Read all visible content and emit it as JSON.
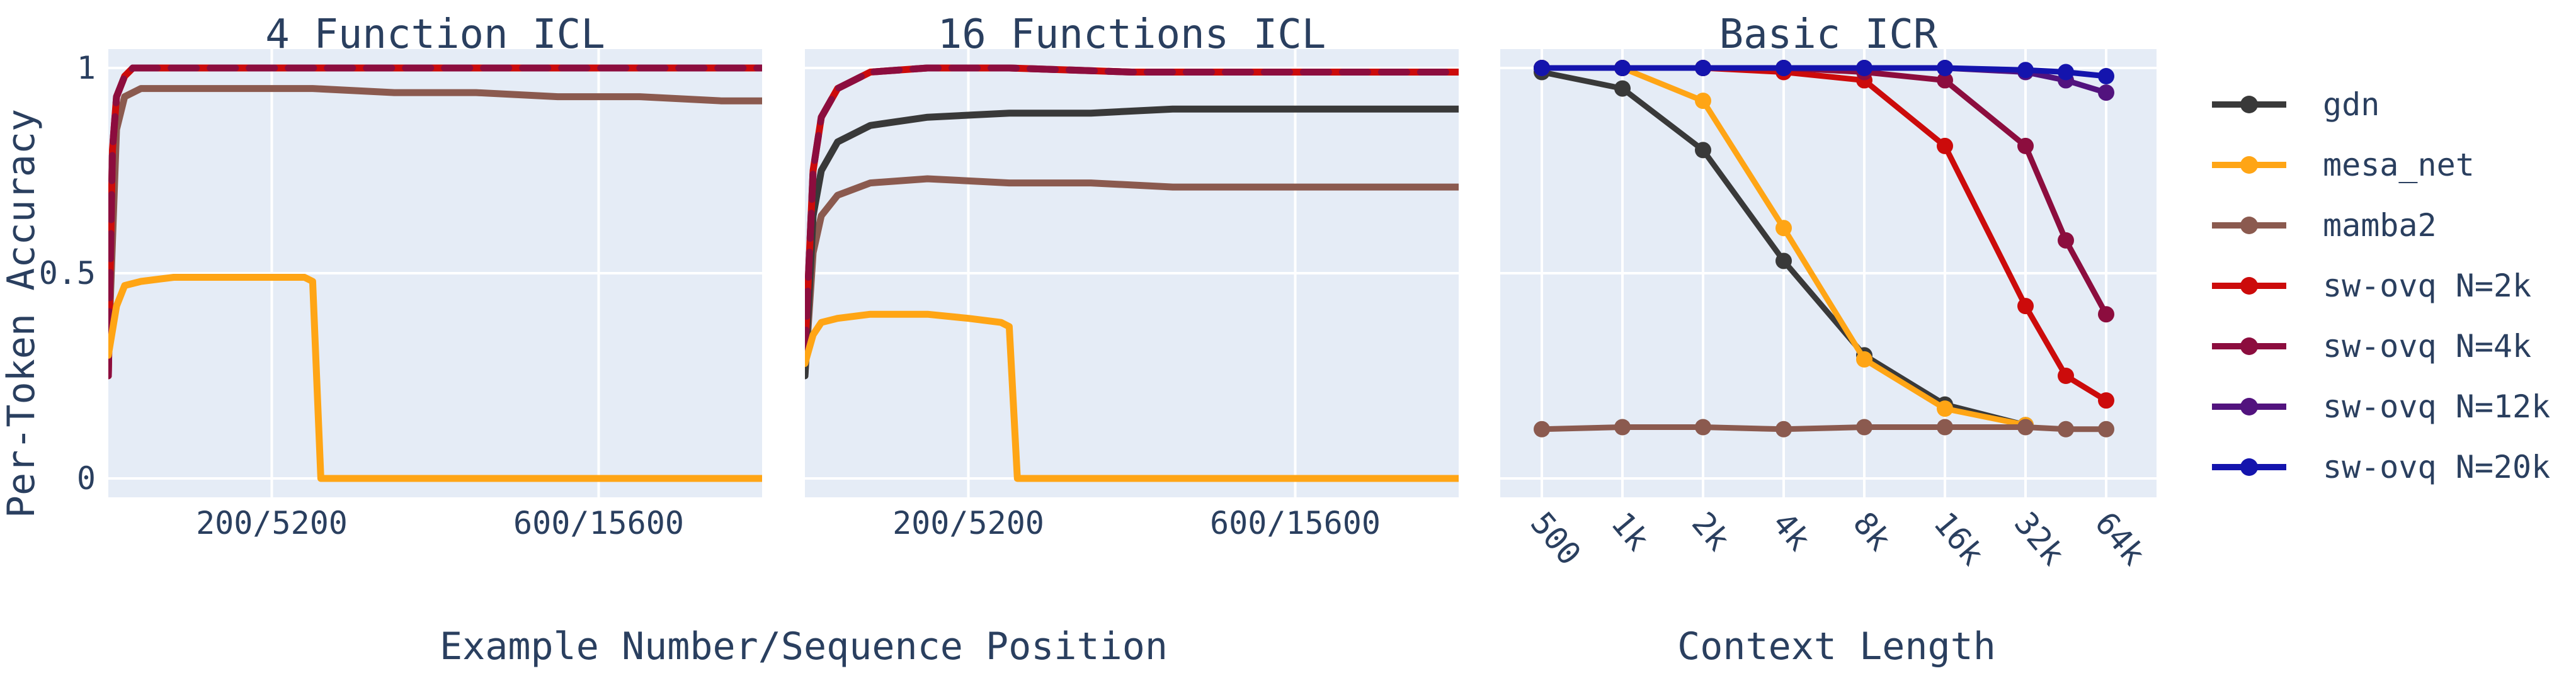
{
  "ylabel": "Per-Token Accuracy",
  "y_ticks": [
    "0",
    "0.5",
    "1"
  ],
  "bottom_titles": [
    "Example Number/Sequence Position",
    "Context Length"
  ],
  "colors": {
    "gdn": "#393939",
    "mesa_net": "#ffa515",
    "mamba2": "#8b5a4f",
    "sw-ovq N=2k": "#cc0b0b",
    "sw-ovq N=4k": "#8c0d3e",
    "sw-ovq N=12k": "#52137e",
    "sw-ovq N=20k": "#1414ad",
    "plot_bg": "#e5ecf6",
    "axis_text": "#2a3f5f"
  },
  "legend": [
    "gdn",
    "mesa_net",
    "mamba2",
    "sw-ovq N=2k",
    "sw-ovq N=4k",
    "sw-ovq N=12k",
    "sw-ovq N=20k"
  ],
  "chart_data": [
    {
      "type": "line",
      "title": "4 Function ICL",
      "xlabel": "Example Number/Sequence Position",
      "ylabel": "Per-Token Accuracy",
      "xlim": [
        0,
        800
      ],
      "ylim": [
        0,
        1
      ],
      "x_ticks": [
        200,
        600
      ],
      "x_tick_labels": [
        "200/5200",
        "600/15600"
      ],
      "grid": true,
      "series": [
        {
          "name": "mamba2",
          "x": [
            0,
            10,
            20,
            40,
            80,
            150,
            250,
            350,
            450,
            550,
            650,
            750,
            800
          ],
          "values": [
            0.3,
            0.85,
            0.93,
            0.95,
            0.95,
            0.95,
            0.95,
            0.94,
            0.94,
            0.93,
            0.93,
            0.92,
            0.92
          ]
        },
        {
          "name": "sw-ovq N=2k",
          "x": [
            0,
            5,
            10,
            20,
            30,
            50,
            100,
            800
          ],
          "values": [
            0.25,
            0.8,
            0.93,
            0.98,
            1.0,
            1.0,
            1.0,
            1.0
          ]
        },
        {
          "name": "sw-ovq N=4k",
          "x": [
            0,
            5,
            10,
            20,
            30,
            50,
            100,
            800
          ],
          "values": [
            0.25,
            0.8,
            0.93,
            0.98,
            1.0,
            1.0,
            1.0,
            1.0
          ]
        },
        {
          "name": "mesa_net",
          "x": [
            0,
            10,
            20,
            40,
            80,
            150,
            200,
            240,
            250,
            260,
            800
          ],
          "values": [
            0.3,
            0.42,
            0.47,
            0.48,
            0.49,
            0.49,
            0.49,
            0.49,
            0.48,
            0.0,
            0.0
          ]
        }
      ]
    },
    {
      "type": "line",
      "title": "16 Functions ICL",
      "xlabel": "Example Number/Sequence Position",
      "ylabel": "Per-Token Accuracy",
      "xlim": [
        0,
        800
      ],
      "ylim": [
        0,
        1
      ],
      "x_ticks": [
        200,
        600
      ],
      "x_tick_labels": [
        "200/5200",
        "600/15600"
      ],
      "grid": true,
      "series": [
        {
          "name": "mamba2",
          "x": [
            0,
            10,
            20,
            40,
            80,
            150,
            250,
            350,
            450,
            550,
            650,
            750,
            800
          ],
          "values": [
            0.25,
            0.55,
            0.64,
            0.69,
            0.72,
            0.73,
            0.72,
            0.72,
            0.71,
            0.71,
            0.71,
            0.71,
            0.71
          ]
        },
        {
          "name": "gdn",
          "x": [
            0,
            10,
            20,
            40,
            80,
            150,
            250,
            350,
            450,
            550,
            650,
            750,
            800
          ],
          "values": [
            0.25,
            0.64,
            0.75,
            0.82,
            0.86,
            0.88,
            0.89,
            0.89,
            0.9,
            0.9,
            0.9,
            0.9,
            0.9
          ]
        },
        {
          "name": "sw-ovq N=2k",
          "x": [
            0,
            10,
            20,
            40,
            80,
            150,
            250,
            400,
            600,
            800
          ],
          "values": [
            0.3,
            0.75,
            0.88,
            0.95,
            0.99,
            1.0,
            1.0,
            0.99,
            0.99,
            0.99
          ]
        },
        {
          "name": "sw-ovq N=4k",
          "x": [
            0,
            10,
            20,
            40,
            80,
            150,
            250,
            400,
            600,
            800
          ],
          "values": [
            0.3,
            0.75,
            0.88,
            0.95,
            0.99,
            1.0,
            1.0,
            0.99,
            0.99,
            0.99
          ]
        },
        {
          "name": "mesa_net",
          "x": [
            0,
            10,
            20,
            40,
            80,
            150,
            200,
            240,
            250,
            260,
            800
          ],
          "values": [
            0.28,
            0.35,
            0.38,
            0.39,
            0.4,
            0.4,
            0.39,
            0.38,
            0.37,
            0.0,
            0.0
          ]
        }
      ]
    },
    {
      "type": "line",
      "title": "Basic ICR",
      "xlabel": "Context Length",
      "ylabel": "Per-Token Accuracy",
      "categories": [
        "500",
        "1k",
        "2k",
        "4k",
        "8k",
        "16k",
        "32k",
        "64k"
      ],
      "ylim": [
        0,
        1
      ],
      "grid": true,
      "series": [
        {
          "name": "gdn",
          "x": [
            0,
            1,
            2,
            3,
            4,
            5,
            6
          ],
          "values": [
            0.99,
            0.95,
            0.8,
            0.53,
            0.3,
            0.18,
            0.13
          ]
        },
        {
          "name": "mesa_net",
          "x": [
            0,
            1,
            2,
            3,
            4,
            5,
            6
          ],
          "values": [
            1.0,
            1.0,
            0.92,
            0.61,
            0.29,
            0.17,
            0.13
          ]
        },
        {
          "name": "mamba2",
          "x": [
            0,
            1,
            2,
            3,
            4,
            5,
            6,
            6.5,
            7
          ],
          "values": [
            0.12,
            0.125,
            0.125,
            0.12,
            0.125,
            0.125,
            0.125,
            0.12,
            0.12
          ]
        },
        {
          "name": "sw-ovq N=2k",
          "x": [
            0,
            1,
            2,
            3,
            4,
            5,
            6,
            6.5,
            7
          ],
          "values": [
            1.0,
            1.0,
            1.0,
            0.99,
            0.97,
            0.81,
            0.42,
            0.25,
            0.19
          ]
        },
        {
          "name": "sw-ovq N=4k",
          "x": [
            0,
            1,
            2,
            3,
            4,
            5,
            6,
            6.5,
            7
          ],
          "values": [
            1.0,
            1.0,
            1.0,
            1.0,
            0.99,
            0.97,
            0.81,
            0.58,
            0.4
          ]
        },
        {
          "name": "sw-ovq N=12k",
          "x": [
            0,
            1,
            2,
            3,
            4,
            5,
            6,
            6.5,
            7
          ],
          "values": [
            1.0,
            1.0,
            1.0,
            1.0,
            1.0,
            1.0,
            0.99,
            0.97,
            0.94
          ]
        },
        {
          "name": "sw-ovq N=20k",
          "x": [
            0,
            1,
            2,
            3,
            4,
            5,
            6,
            6.5,
            7
          ],
          "values": [
            1.0,
            1.0,
            1.0,
            1.0,
            1.0,
            1.0,
            0.995,
            0.99,
            0.98
          ]
        }
      ]
    }
  ]
}
